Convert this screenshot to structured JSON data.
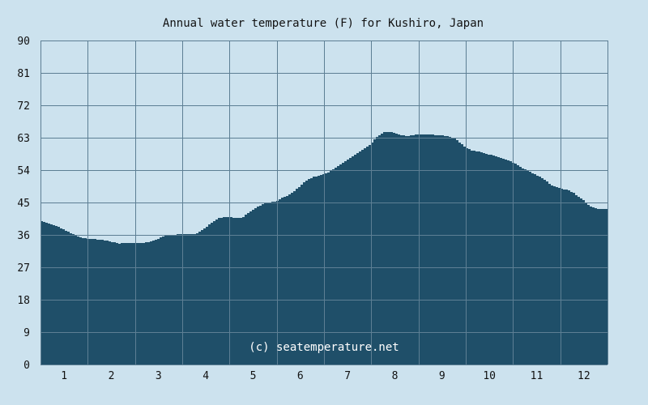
{
  "chart_data": {
    "type": "area",
    "title": "Annual water temperature (F) for Kushiro, Japan",
    "xlabel": "",
    "ylabel": "",
    "watermark": "(c) seatemperature.net",
    "ylim": [
      0,
      90
    ],
    "yticks": [
      0,
      9,
      18,
      27,
      36,
      45,
      54,
      63,
      72,
      81,
      90
    ],
    "month_labels": [
      "1",
      "2",
      "3",
      "4",
      "5",
      "6",
      "7",
      "8",
      "9",
      "10",
      "11",
      "12"
    ],
    "grid": true,
    "colors": {
      "background": "#cce2ee",
      "plot_background": "#cce2ee",
      "fill": "#1f4f69",
      "grid": "#5d7f94"
    },
    "series": [
      {
        "x": [
          "Jan 1",
          "Jan 5",
          "Jan 10",
          "Jan 15",
          "Jan 20",
          "Jan 25",
          "Feb 1",
          "Feb 5",
          "Feb 10",
          "Feb 15",
          "Feb 20",
          "Feb 25",
          "Mar 1",
          "Mar 5",
          "Mar 10",
          "Mar 15",
          "Mar 20",
          "Mar 25",
          "Apr 1",
          "Apr 5",
          "Apr 10",
          "Apr 15",
          "Apr 20",
          "Apr 25",
          "May 1",
          "May 5",
          "May 10",
          "May 15",
          "May 20",
          "May 25",
          "Jun 1",
          "Jun 5",
          "Jun 10",
          "Jun 15",
          "Jun 20",
          "Jun 25",
          "Jul 1",
          "Jul 5",
          "Jul 10",
          "Jul 15",
          "Jul 20",
          "Jul 25",
          "Aug 1",
          "Aug 5",
          "Aug 10",
          "Aug 15",
          "Aug 20",
          "Aug 25",
          "Sep 1",
          "Sep 5",
          "Sep 10",
          "Sep 15",
          "Sep 20",
          "Sep 25",
          "Oct 1",
          "Oct 5",
          "Oct 10",
          "Oct 15",
          "Oct 20",
          "Oct 25",
          "Nov 1",
          "Nov 5",
          "Nov 10",
          "Nov 15",
          "Nov 20",
          "Nov 25",
          "Dec 1",
          "Dec 5",
          "Dec 10",
          "Dec 15",
          "Dec 20",
          "Dec 25",
          "Dec 31"
        ],
        "y": [
          39.9,
          39.3,
          38.5,
          37.6,
          36.4,
          35.4,
          34.8,
          34.8,
          34.6,
          34.1,
          33.6,
          33.8,
          33.8,
          33.8,
          33.9,
          34.6,
          35.5,
          36.0,
          36.2,
          36.2,
          36.2,
          37.5,
          39.3,
          40.7,
          41.1,
          40.7,
          40.8,
          42.3,
          43.8,
          44.8,
          45.3,
          46.3,
          47.3,
          49.0,
          51.0,
          52.1,
          52.8,
          53.5,
          54.9,
          56.3,
          57.7,
          59.3,
          61.3,
          63.3,
          64.6,
          64.6,
          63.7,
          63.5,
          64.0,
          64.0,
          63.8,
          63.7,
          63.3,
          62.5,
          60.3,
          59.4,
          59.1,
          58.5,
          57.8,
          57.3,
          56.0,
          54.9,
          53.9,
          52.7,
          51.6,
          49.9,
          48.8,
          48.6,
          47.5,
          45.9,
          44.0,
          43.1,
          43.1
        ]
      }
    ]
  }
}
